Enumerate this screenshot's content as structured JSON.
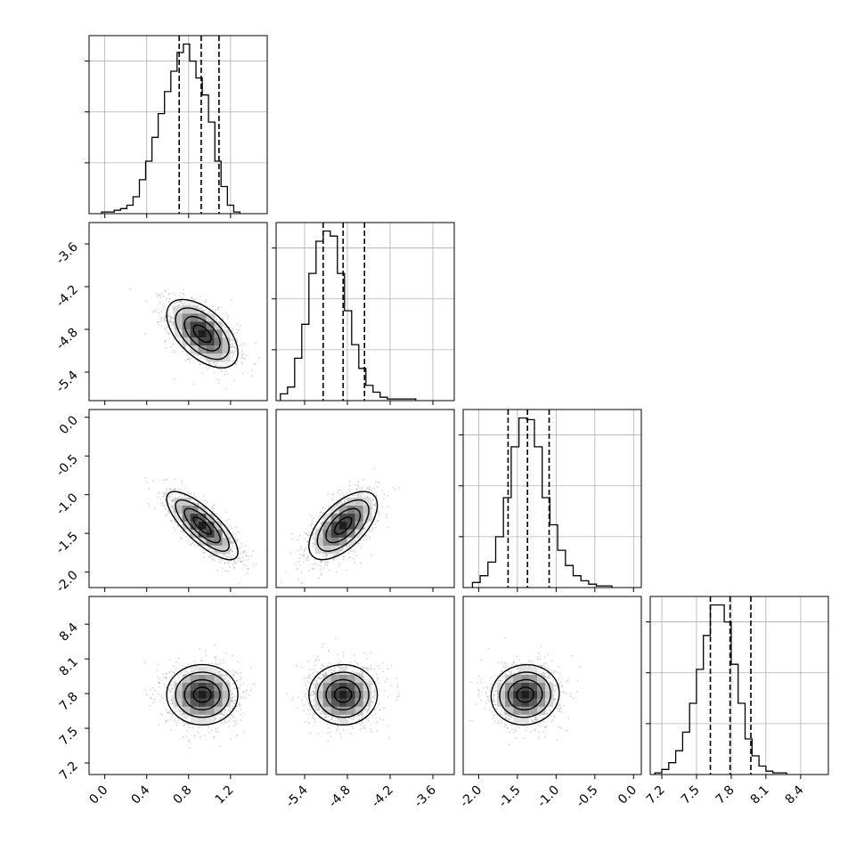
{
  "chart_data": {
    "type": "corner",
    "title": "",
    "variables": [
      {
        "range": [
          -0.15,
          1.55
        ],
        "ticks": [
          0.0,
          0.4,
          0.8,
          1.2
        ],
        "tick_labels": [
          "0.0",
          "0.4",
          "0.8",
          "1.2"
        ],
        "quantiles": [
          0.71,
          0.92,
          1.09
        ],
        "hist": {
          "edges_start": -0.03,
          "bin_width": 0.06,
          "counts": [
            0.01,
            0.01,
            0.02,
            0.03,
            0.05,
            0.1,
            0.2,
            0.31,
            0.45,
            0.59,
            0.72,
            0.84,
            0.95,
            1.0,
            0.9,
            0.8,
            0.7,
            0.54,
            0.31,
            0.16,
            0.05,
            0.01
          ]
        },
        "hist_ticks_rel": [
          0.3,
          0.6,
          0.9
        ]
      },
      {
        "range": [
          -5.8,
          -3.3
        ],
        "ticks": [
          -5.4,
          -4.8,
          -4.2,
          -3.6
        ],
        "tick_labels": [
          "-5.4",
          "-4.8",
          "-4.2",
          "-3.6"
        ],
        "quantiles": [
          -5.14,
          -4.86,
          -4.56
        ],
        "hist": {
          "edges_start": -5.74,
          "bin_width": 0.1,
          "counts": [
            0.04,
            0.08,
            0.25,
            0.45,
            0.75,
            0.94,
            1.0,
            0.97,
            0.75,
            0.53,
            0.33,
            0.19,
            0.09,
            0.05,
            0.02,
            0.01,
            0.01,
            0.01,
            0.01
          ]
        },
        "hist_ticks_rel": [
          0.3,
          0.6,
          0.9
        ]
      },
      {
        "range": [
          -2.2,
          0.1
        ],
        "ticks": [
          -2.0,
          -1.5,
          -1.0,
          -0.5,
          0.0
        ],
        "tick_labels": [
          "-2.0",
          "-1.5",
          "-1.0",
          "-0.5",
          "0.0"
        ],
        "quantiles": [
          -1.62,
          -1.37,
          -1.09
        ],
        "hist": {
          "edges_start": -2.08,
          "bin_width": 0.1,
          "counts": [
            0.03,
            0.07,
            0.15,
            0.3,
            0.53,
            0.83,
            1.0,
            0.99,
            0.83,
            0.53,
            0.37,
            0.22,
            0.13,
            0.07,
            0.04,
            0.02,
            0.01,
            0.01
          ]
        },
        "hist_ticks_rel": [
          0.3,
          0.6,
          0.9
        ]
      },
      {
        "range": [
          7.1,
          8.64
        ],
        "ticks": [
          7.2,
          7.5,
          7.8,
          8.1,
          8.4
        ],
        "tick_labels": [
          "7.2",
          "7.5",
          "7.8",
          "8.1",
          "8.4"
        ],
        "quantiles": [
          7.62,
          7.79,
          7.97
        ],
        "hist": {
          "edges_start": 7.14,
          "bin_width": 0.06,
          "counts": [
            0.01,
            0.03,
            0.07,
            0.14,
            0.25,
            0.42,
            0.62,
            0.82,
            1.0,
            1.0,
            0.9,
            0.65,
            0.42,
            0.21,
            0.11,
            0.05,
            0.02,
            0.01,
            0.01
          ]
        },
        "hist_ticks_rel": [
          0.3,
          0.6,
          0.9
        ]
      }
    ],
    "pairs": [
      {
        "row": 1,
        "col": 0,
        "mean": [
          0.93,
          -4.86
        ],
        "sd": [
          0.17,
          0.24
        ],
        "rho": -0.55,
        "n": 1400
      },
      {
        "row": 2,
        "col": 0,
        "mean": [
          0.93,
          -1.4
        ],
        "sd": [
          0.17,
          0.22
        ],
        "rho": -0.78,
        "n": 1400
      },
      {
        "row": 2,
        "col": 1,
        "mean": [
          -4.86,
          -1.4
        ],
        "sd": [
          0.24,
          0.22
        ],
        "rho": 0.6,
        "n": 1400
      },
      {
        "row": 3,
        "col": 0,
        "mean": [
          0.93,
          7.79
        ],
        "sd": [
          0.17,
          0.13
        ],
        "rho": 0.0,
        "n": 1400
      },
      {
        "row": 3,
        "col": 1,
        "mean": [
          -4.86,
          7.79
        ],
        "sd": [
          0.24,
          0.13
        ],
        "rho": 0.0,
        "n": 1400
      },
      {
        "row": 3,
        "col": 2,
        "mean": [
          -1.4,
          7.79
        ],
        "sd": [
          0.22,
          0.13
        ],
        "rho": 0.05,
        "n": 1400
      }
    ],
    "contour_levels_sigma": [
      0.5,
      1.0,
      1.5,
      2.0
    ],
    "grid": true,
    "colors": {
      "hist": "#000000",
      "points": "#888888",
      "contour": "#000000",
      "grid": "#b0b0b0",
      "frame": "#000000"
    }
  }
}
